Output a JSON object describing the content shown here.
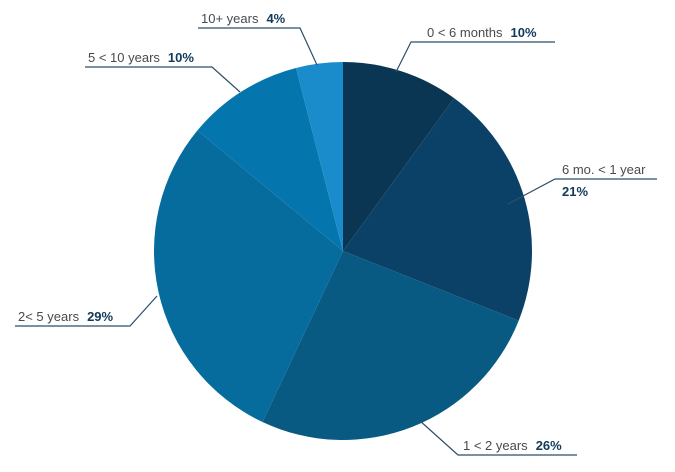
{
  "chart_data": {
    "type": "pie",
    "slices": [
      {
        "label": "0 < 6 months",
        "value": 10,
        "value_label": "10%",
        "color": "#0a3654"
      },
      {
        "label": "6 mo. < 1 year",
        "value": 21,
        "value_label": "21%",
        "color": "#0b4166"
      },
      {
        "label": "1 < 2 years",
        "value": 26,
        "value_label": "26%",
        "color": "#085a83"
      },
      {
        "label": "2< 5 years",
        "value": 29,
        "value_label": "29%",
        "color": "#066b9d"
      },
      {
        "label": "5 < 10 years",
        "value": 10,
        "value_label": "10%",
        "color": "#0576ad"
      },
      {
        "label": "10+ years",
        "value": 4,
        "value_label": "4%",
        "color": "#1a8ccc"
      }
    ],
    "start_angle_deg": 0,
    "direction": "clockwise"
  }
}
